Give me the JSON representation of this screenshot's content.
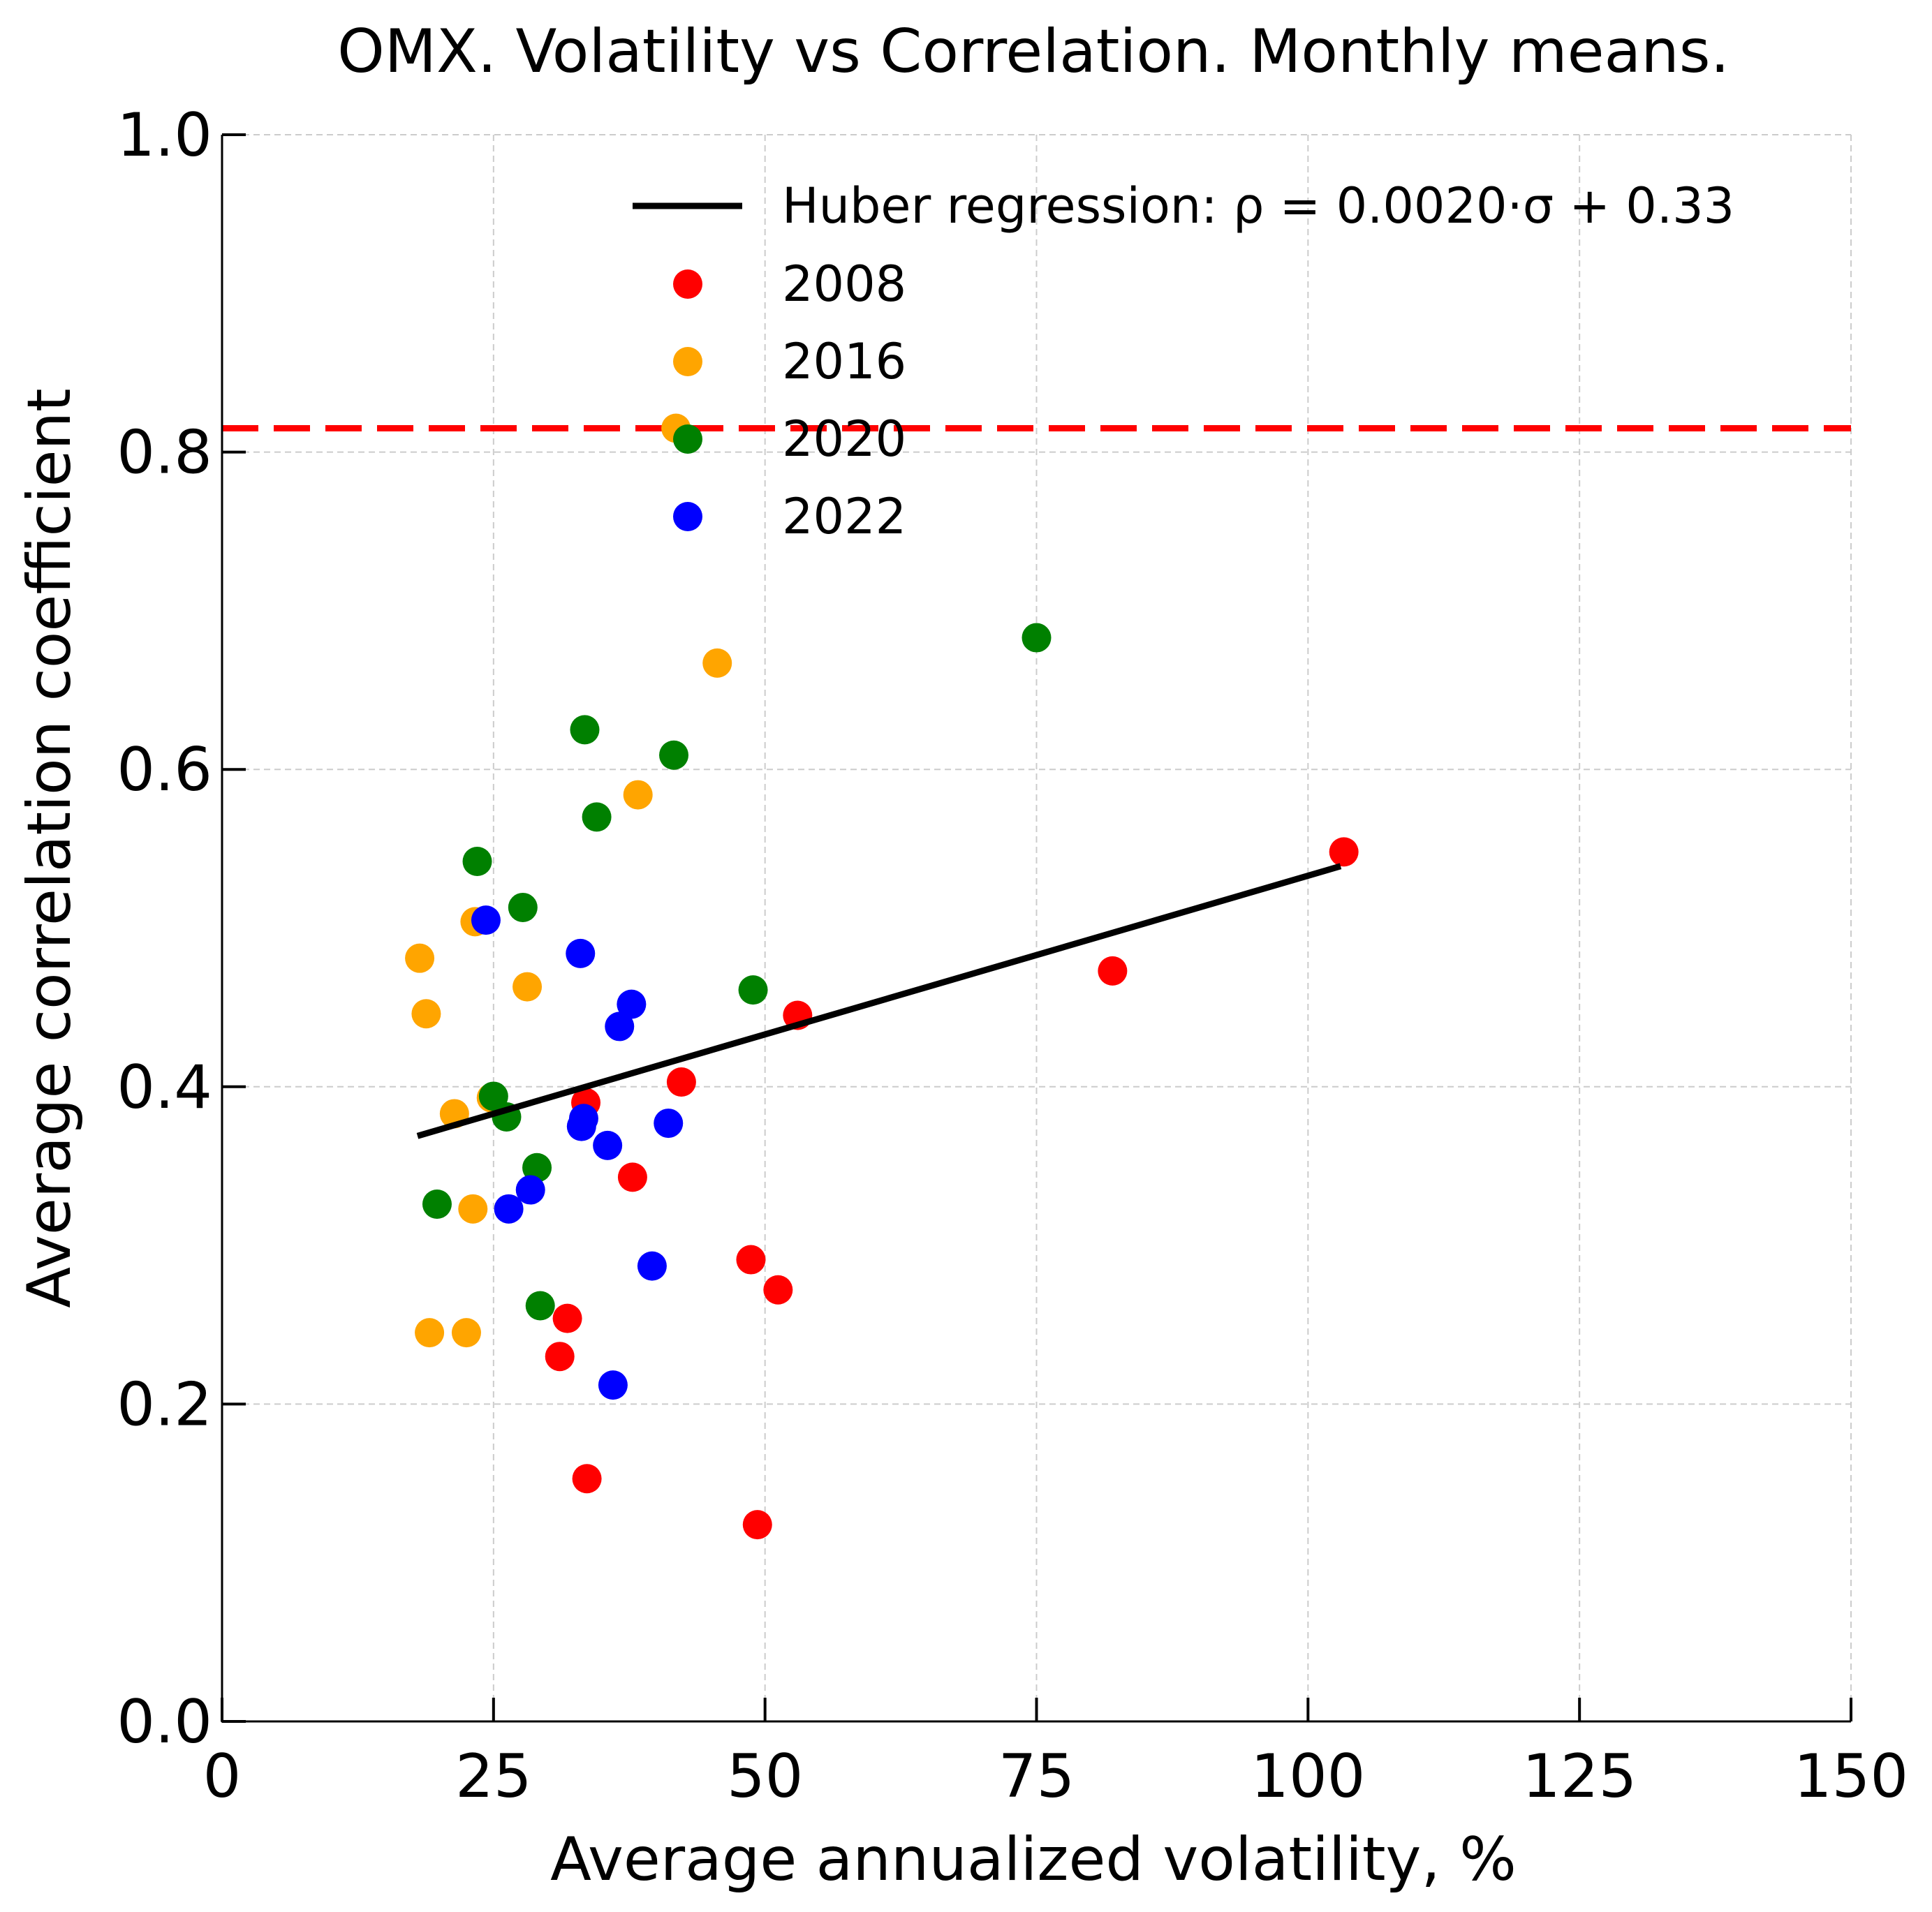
{
  "chart_data": {
    "type": "scatter",
    "title": "OMX. Volatility vs Correlation. Monthly means.",
    "xlabel": "Average annualized volatility, %",
    "ylabel": "Average correlation coefficient",
    "xlim": [
      0,
      150
    ],
    "ylim": [
      0,
      1.0
    ],
    "xticks": [
      0,
      25,
      50,
      75,
      100,
      125,
      150
    ],
    "yticks": [
      0.0,
      0.2,
      0.4,
      0.6,
      0.8,
      1.0
    ],
    "xtick_labels": [
      "0",
      "25",
      "50",
      "75",
      "100",
      "125",
      "150"
    ],
    "ytick_labels": [
      "0.0",
      "0.2",
      "0.4",
      "0.6",
      "0.8",
      "1.0"
    ],
    "grid": true,
    "legend_position": "top-right",
    "regression": {
      "label": "Huber regression: ρ = 0.0020·σ + 0.33",
      "color": "#000000",
      "x": [
        18,
        103
      ],
      "y": [
        0.369,
        0.539
      ]
    },
    "reference_line": {
      "y": 0.815,
      "color": "#ff0000",
      "style": "dashed"
    },
    "series": [
      {
        "name": "2008",
        "color": "#ff0000",
        "points": [
          [
            103.3,
            0.548
          ],
          [
            82.0,
            0.473
          ],
          [
            53.0,
            0.445
          ],
          [
            42.3,
            0.403
          ],
          [
            33.5,
            0.39
          ],
          [
            37.8,
            0.343
          ],
          [
            48.7,
            0.291
          ],
          [
            51.2,
            0.272
          ],
          [
            31.8,
            0.254
          ],
          [
            31.1,
            0.23
          ],
          [
            33.6,
            0.153
          ],
          [
            49.3,
            0.124
          ]
        ]
      },
      {
        "name": "2016",
        "color": "#ffa500",
        "points": [
          [
            41.8,
            0.815
          ],
          [
            45.6,
            0.667
          ],
          [
            38.3,
            0.584
          ],
          [
            23.3,
            0.504
          ],
          [
            18.2,
            0.481
          ],
          [
            28.1,
            0.463
          ],
          [
            18.8,
            0.446
          ],
          [
            21.4,
            0.383
          ],
          [
            24.8,
            0.393
          ],
          [
            23.1,
            0.323
          ],
          [
            19.1,
            0.245
          ],
          [
            22.5,
            0.245
          ]
        ]
      },
      {
        "name": "2020",
        "color": "#008000",
        "points": [
          [
            75.0,
            0.683
          ],
          [
            33.4,
            0.625
          ],
          [
            41.6,
            0.609
          ],
          [
            34.5,
            0.57
          ],
          [
            23.5,
            0.542
          ],
          [
            27.7,
            0.513
          ],
          [
            48.9,
            0.461
          ],
          [
            25.0,
            0.394
          ],
          [
            26.2,
            0.381
          ],
          [
            29.0,
            0.349
          ],
          [
            19.8,
            0.326
          ],
          [
            29.3,
            0.262
          ]
        ]
      },
      {
        "name": "2022",
        "color": "#0000ff",
        "points": [
          [
            24.3,
            0.505
          ],
          [
            33.0,
            0.484
          ],
          [
            37.7,
            0.452
          ],
          [
            36.6,
            0.438
          ],
          [
            33.3,
            0.38
          ],
          [
            33.1,
            0.375
          ],
          [
            41.1,
            0.377
          ],
          [
            35.5,
            0.363
          ],
          [
            28.4,
            0.335
          ],
          [
            26.4,
            0.323
          ],
          [
            39.6,
            0.287
          ],
          [
            36.0,
            0.212
          ]
        ]
      }
    ]
  }
}
